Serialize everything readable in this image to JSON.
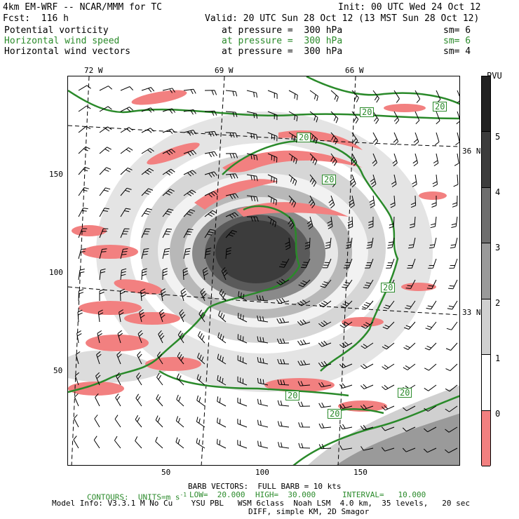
{
  "header": {
    "model": "4km EM-WRF -- NCAR/MMM for TC",
    "init": "Init: 00 UTC Wed 24 Oct 12",
    "fcst": "Fcst:  116 h",
    "valid": "Valid: 20 UTC Sun 28 Oct 12 (13 MST Sun 28 Oct 12)",
    "fields": [
      {
        "name": "Potential vorticity",
        "level": "at pressure =  300 hPa",
        "sm": "sm= 6",
        "color": "#000000"
      },
      {
        "name": "Horizontal wind speed",
        "level": "at pressure =  300 hPa",
        "sm": "sm= 6",
        "color": "#2a8a2a"
      },
      {
        "name": "Horizontal wind vectors",
        "level": "at pressure =  300 hPa",
        "sm": "sm= 4",
        "color": "#000000"
      }
    ]
  },
  "map": {
    "lon_labels": [
      "72 W",
      "69 W",
      "66 W"
    ],
    "lat_labels": [
      "36 N",
      "33 N"
    ],
    "y_ticks": [
      "150",
      "100",
      "50"
    ],
    "x_ticks": [
      "50",
      "100",
      "150"
    ],
    "contour_labels": [
      "20",
      "20",
      "20",
      "20",
      "20",
      "20",
      "20",
      "20"
    ]
  },
  "colorbar": {
    "unit": "PVU",
    "labels": [
      "5",
      "4",
      "3",
      "2",
      "1",
      "0"
    ],
    "colors": [
      "#3c3c3c",
      "#6e6e6e",
      "#9a9a9a",
      "#d0d0d0",
      "#ffffff",
      "#f28080"
    ]
  },
  "footer": {
    "barb": "BARB VECTORS:  FULL BARB = 10 kts",
    "contours": "CONTOURS:  UNITS=m s",
    "contours_sup": "-1",
    "low": "LOW=  20.000",
    "high": "HIGH=  30.000",
    "interval": "INTERVAL=   10.000",
    "model_info": "Model Info: V3.3.1 M No Cu    YSU PBL   WSM 6class  Noah LSM  4.0 km,  35 levels,   20 sec",
    "diff": "DIFF, simple KM, 2D Smagor"
  }
}
